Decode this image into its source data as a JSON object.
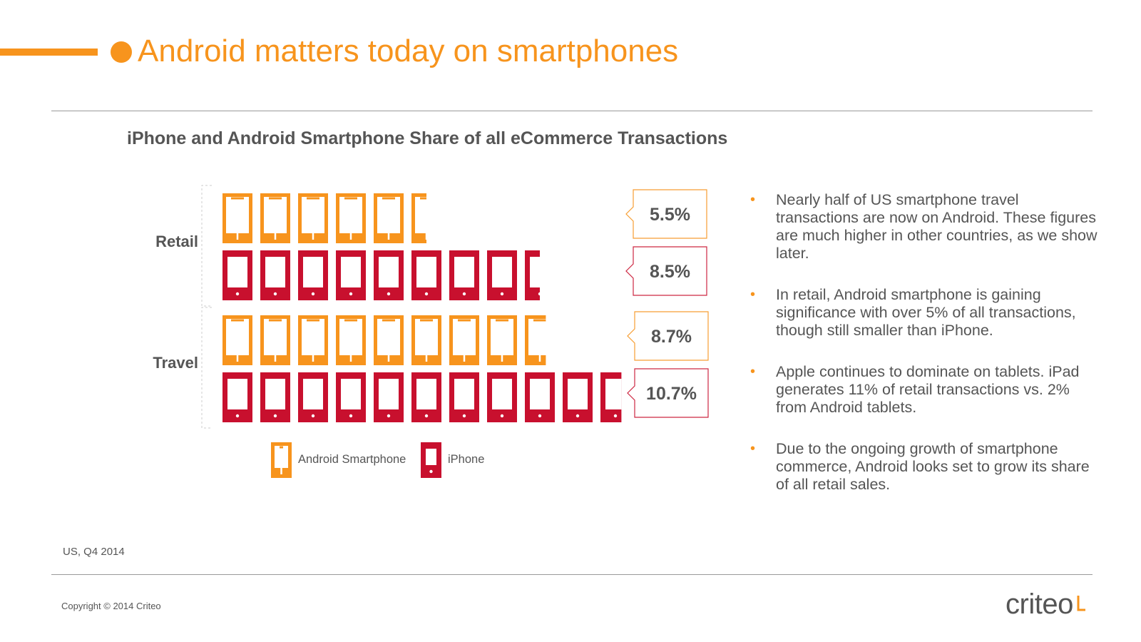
{
  "header": {
    "title": "Android matters today on smartphones"
  },
  "chart_data": {
    "type": "bar",
    "title": "iPhone and Android Smartphone Share of all eCommerce Transactions",
    "categories": [
      "Retail",
      "Travel"
    ],
    "series": [
      {
        "name": "Android Smartphone",
        "values": [
          5.5,
          8.7
        ],
        "labels": [
          "5.5%",
          "8.7%"
        ],
        "color": "#f7941d",
        "icon": "android-phone-icon"
      },
      {
        "name": "iPhone",
        "values": [
          8.5,
          10.7
        ],
        "labels": [
          "8.5%",
          "10.7%"
        ],
        "color": "#c8102e",
        "icon": "iphone-icon"
      }
    ],
    "unit_per_icon": 1,
    "legend_position": "bottom",
    "grid": false
  },
  "bullets": [
    "Nearly half of US smartphone travel transactions are now on Android. These figures are much higher in other countries, as we show later.",
    "In retail, Android smartphone is gaining significance with over 5% of all transactions, though still smaller than iPhone.",
    "Apple continues to dominate on tablets. iPad generates 11% of retail transactions vs. 2% from Android tablets.",
    "Due to the ongoing growth of smartphone commerce, Android looks set to grow its share of all retail sales."
  ],
  "footer": {
    "source": "US, Q4 2014",
    "copyright": "Copyright © 2014 Criteo",
    "logo_text": "criteo"
  },
  "colors": {
    "accent": "#f7941d",
    "iphone": "#c8102e",
    "text": "#555555"
  }
}
